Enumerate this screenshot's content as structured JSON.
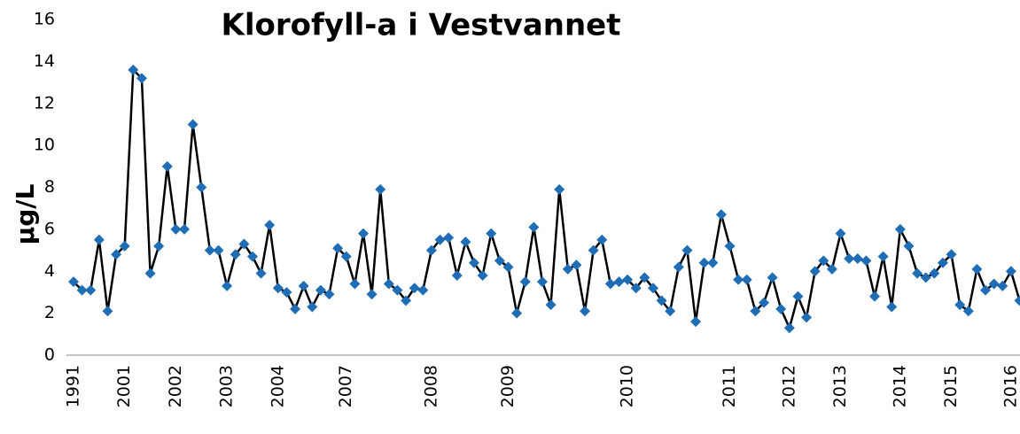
{
  "chart_data": {
    "type": "line",
    "title": "Klorofyll-a i Vestvannet",
    "y_label": "µg/L",
    "categories": [
      "1991",
      null,
      null,
      null,
      null,
      null,
      "2001",
      null,
      null,
      null,
      null,
      null,
      "2002",
      null,
      null,
      null,
      null,
      null,
      "2003",
      null,
      null,
      null,
      null,
      null,
      "2004",
      null,
      null,
      null,
      null,
      null,
      null,
      null,
      "2007",
      null,
      null,
      null,
      null,
      null,
      null,
      null,
      null,
      null,
      "2008",
      null,
      null,
      null,
      null,
      null,
      null,
      null,
      null,
      "2009",
      null,
      null,
      null,
      null,
      null,
      null,
      null,
      null,
      null,
      null,
      null,
      null,
      null,
      "2010",
      null,
      null,
      null,
      null,
      null,
      null,
      null,
      null,
      null,
      null,
      null,
      "2011",
      null,
      null,
      null,
      null,
      null,
      null,
      "2012",
      null,
      null,
      null,
      null,
      null,
      "2013",
      null,
      null,
      null,
      null,
      null,
      null,
      "2014",
      null,
      null,
      null,
      null,
      null,
      "2015",
      null,
      null,
      null,
      null,
      null,
      null,
      "2016",
      null
    ],
    "values": [
      3.5,
      3.1,
      3.1,
      5.5,
      2.1,
      4.8,
      5.2,
      13.6,
      13.2,
      3.9,
      5.2,
      9.0,
      6.0,
      6.0,
      11.0,
      8.0,
      5.0,
      5.0,
      3.3,
      4.8,
      5.3,
      4.7,
      3.9,
      6.2,
      3.2,
      3.0,
      2.2,
      3.3,
      2.3,
      3.1,
      2.9,
      5.1,
      4.7,
      3.4,
      5.8,
      2.9,
      7.9,
      3.4,
      3.1,
      2.6,
      3.2,
      3.1,
      5.0,
      5.5,
      5.6,
      3.8,
      5.4,
      4.4,
      3.8,
      5.8,
      4.5,
      4.2,
      2.0,
      3.5,
      6.1,
      3.5,
      2.4,
      7.9,
      4.1,
      4.3,
      2.1,
      5.0,
      5.5,
      3.4,
      3.5,
      3.6,
      3.2,
      3.7,
      3.2,
      2.6,
      2.1,
      4.2,
      5.0,
      1.6,
      4.4,
      4.4,
      6.7,
      5.2,
      3.6,
      3.6,
      2.1,
      2.5,
      3.7,
      2.2,
      1.3,
      2.8,
      1.8,
      4.0,
      4.5,
      4.1,
      5.8,
      4.6,
      4.6,
      4.5,
      2.8,
      4.7,
      2.3,
      6.0,
      5.2,
      3.9,
      3.7,
      3.9,
      4.4,
      4.8,
      2.4,
      2.1,
      4.1,
      3.1,
      3.4,
      3.3,
      4.0,
      2.6
    ],
    "color": "#1f6db5",
    "line_color": "#000000",
    "ylim": [
      0,
      16
    ],
    "yticks": [
      0,
      2,
      4,
      6,
      8,
      10,
      12,
      14,
      16
    ],
    "grid": false
  }
}
